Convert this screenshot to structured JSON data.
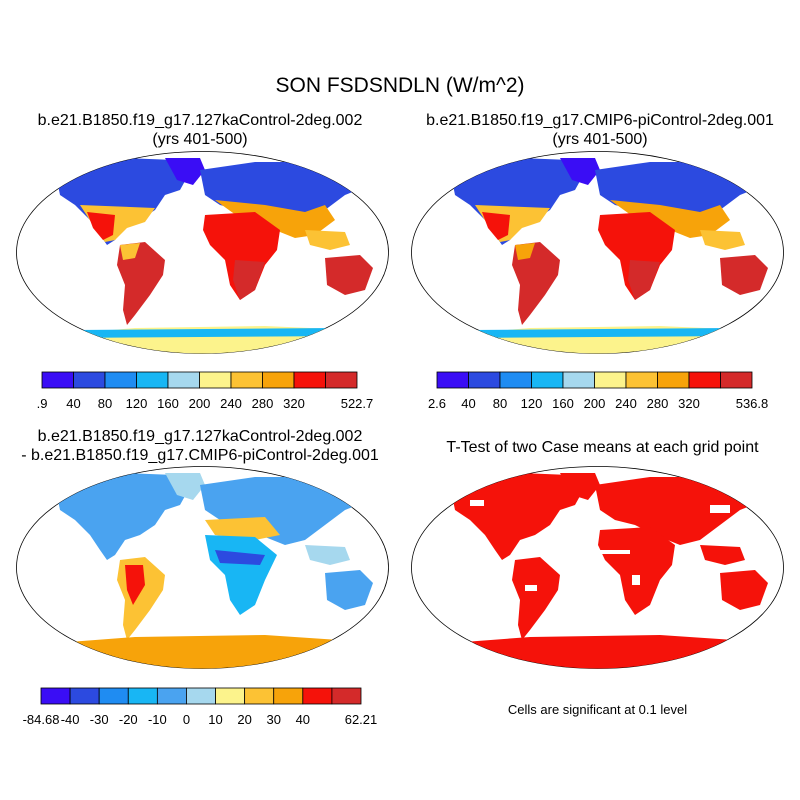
{
  "figure": {
    "title": "SON FSDSNDLN (W/m^2)"
  },
  "panels": [
    {
      "title_line1": "b.e21.B1850.f19_g17.127kaControl-2deg.002",
      "title_line2": "(yrs 401-500)",
      "colorbar": {
        "colors": [
          "#3a0df5",
          "#2c4ae0",
          "#1f8cf2",
          "#18b6f4",
          "#a6d8ee",
          "#fcf38c",
          "#fcc234",
          "#f7a30a",
          "#f5120a",
          "#d42a2a"
        ],
        "labels": [
          ".9",
          "40",
          "80",
          "120",
          "160",
          "200",
          "240",
          "280",
          "320",
          "522.7"
        ]
      }
    },
    {
      "title_line1": "b.e21.B1850.f19_g17.CMIP6-piControl-2deg.001",
      "title_line2": "(yrs 401-500)",
      "colorbar": {
        "colors": [
          "#3a0df5",
          "#2c4ae0",
          "#1f8cf2",
          "#18b6f4",
          "#a6d8ee",
          "#fcf38c",
          "#fcc234",
          "#f7a30a",
          "#f5120a",
          "#d42a2a"
        ],
        "labels": [
          "2.6",
          "40",
          "80",
          "120",
          "160",
          "200",
          "240",
          "280",
          "320",
          "536.8"
        ]
      }
    },
    {
      "title_line1": "b.e21.B1850.f19_g17.127kaControl-2deg.002",
      "title_line2": "- b.e21.B1850.f19_g17.CMIP6-piControl-2deg.001",
      "colorbar": {
        "colors": [
          "#3a0df5",
          "#2c4ae0",
          "#1f8cf2",
          "#18b6f4",
          "#4aa3f0",
          "#a6d8ee",
          "#fcf38c",
          "#fcc234",
          "#f7a30a",
          "#f5120a",
          "#d42a2a"
        ],
        "labels": [
          "-84.68",
          "-40",
          "-30",
          "-20",
          "-10",
          "0",
          "10",
          "20",
          "30",
          "40",
          "62.21"
        ]
      }
    },
    {
      "title_line1": "T-Test of two Case means at each grid point",
      "note": "Cells are significant at 0.1 level"
    }
  ]
}
